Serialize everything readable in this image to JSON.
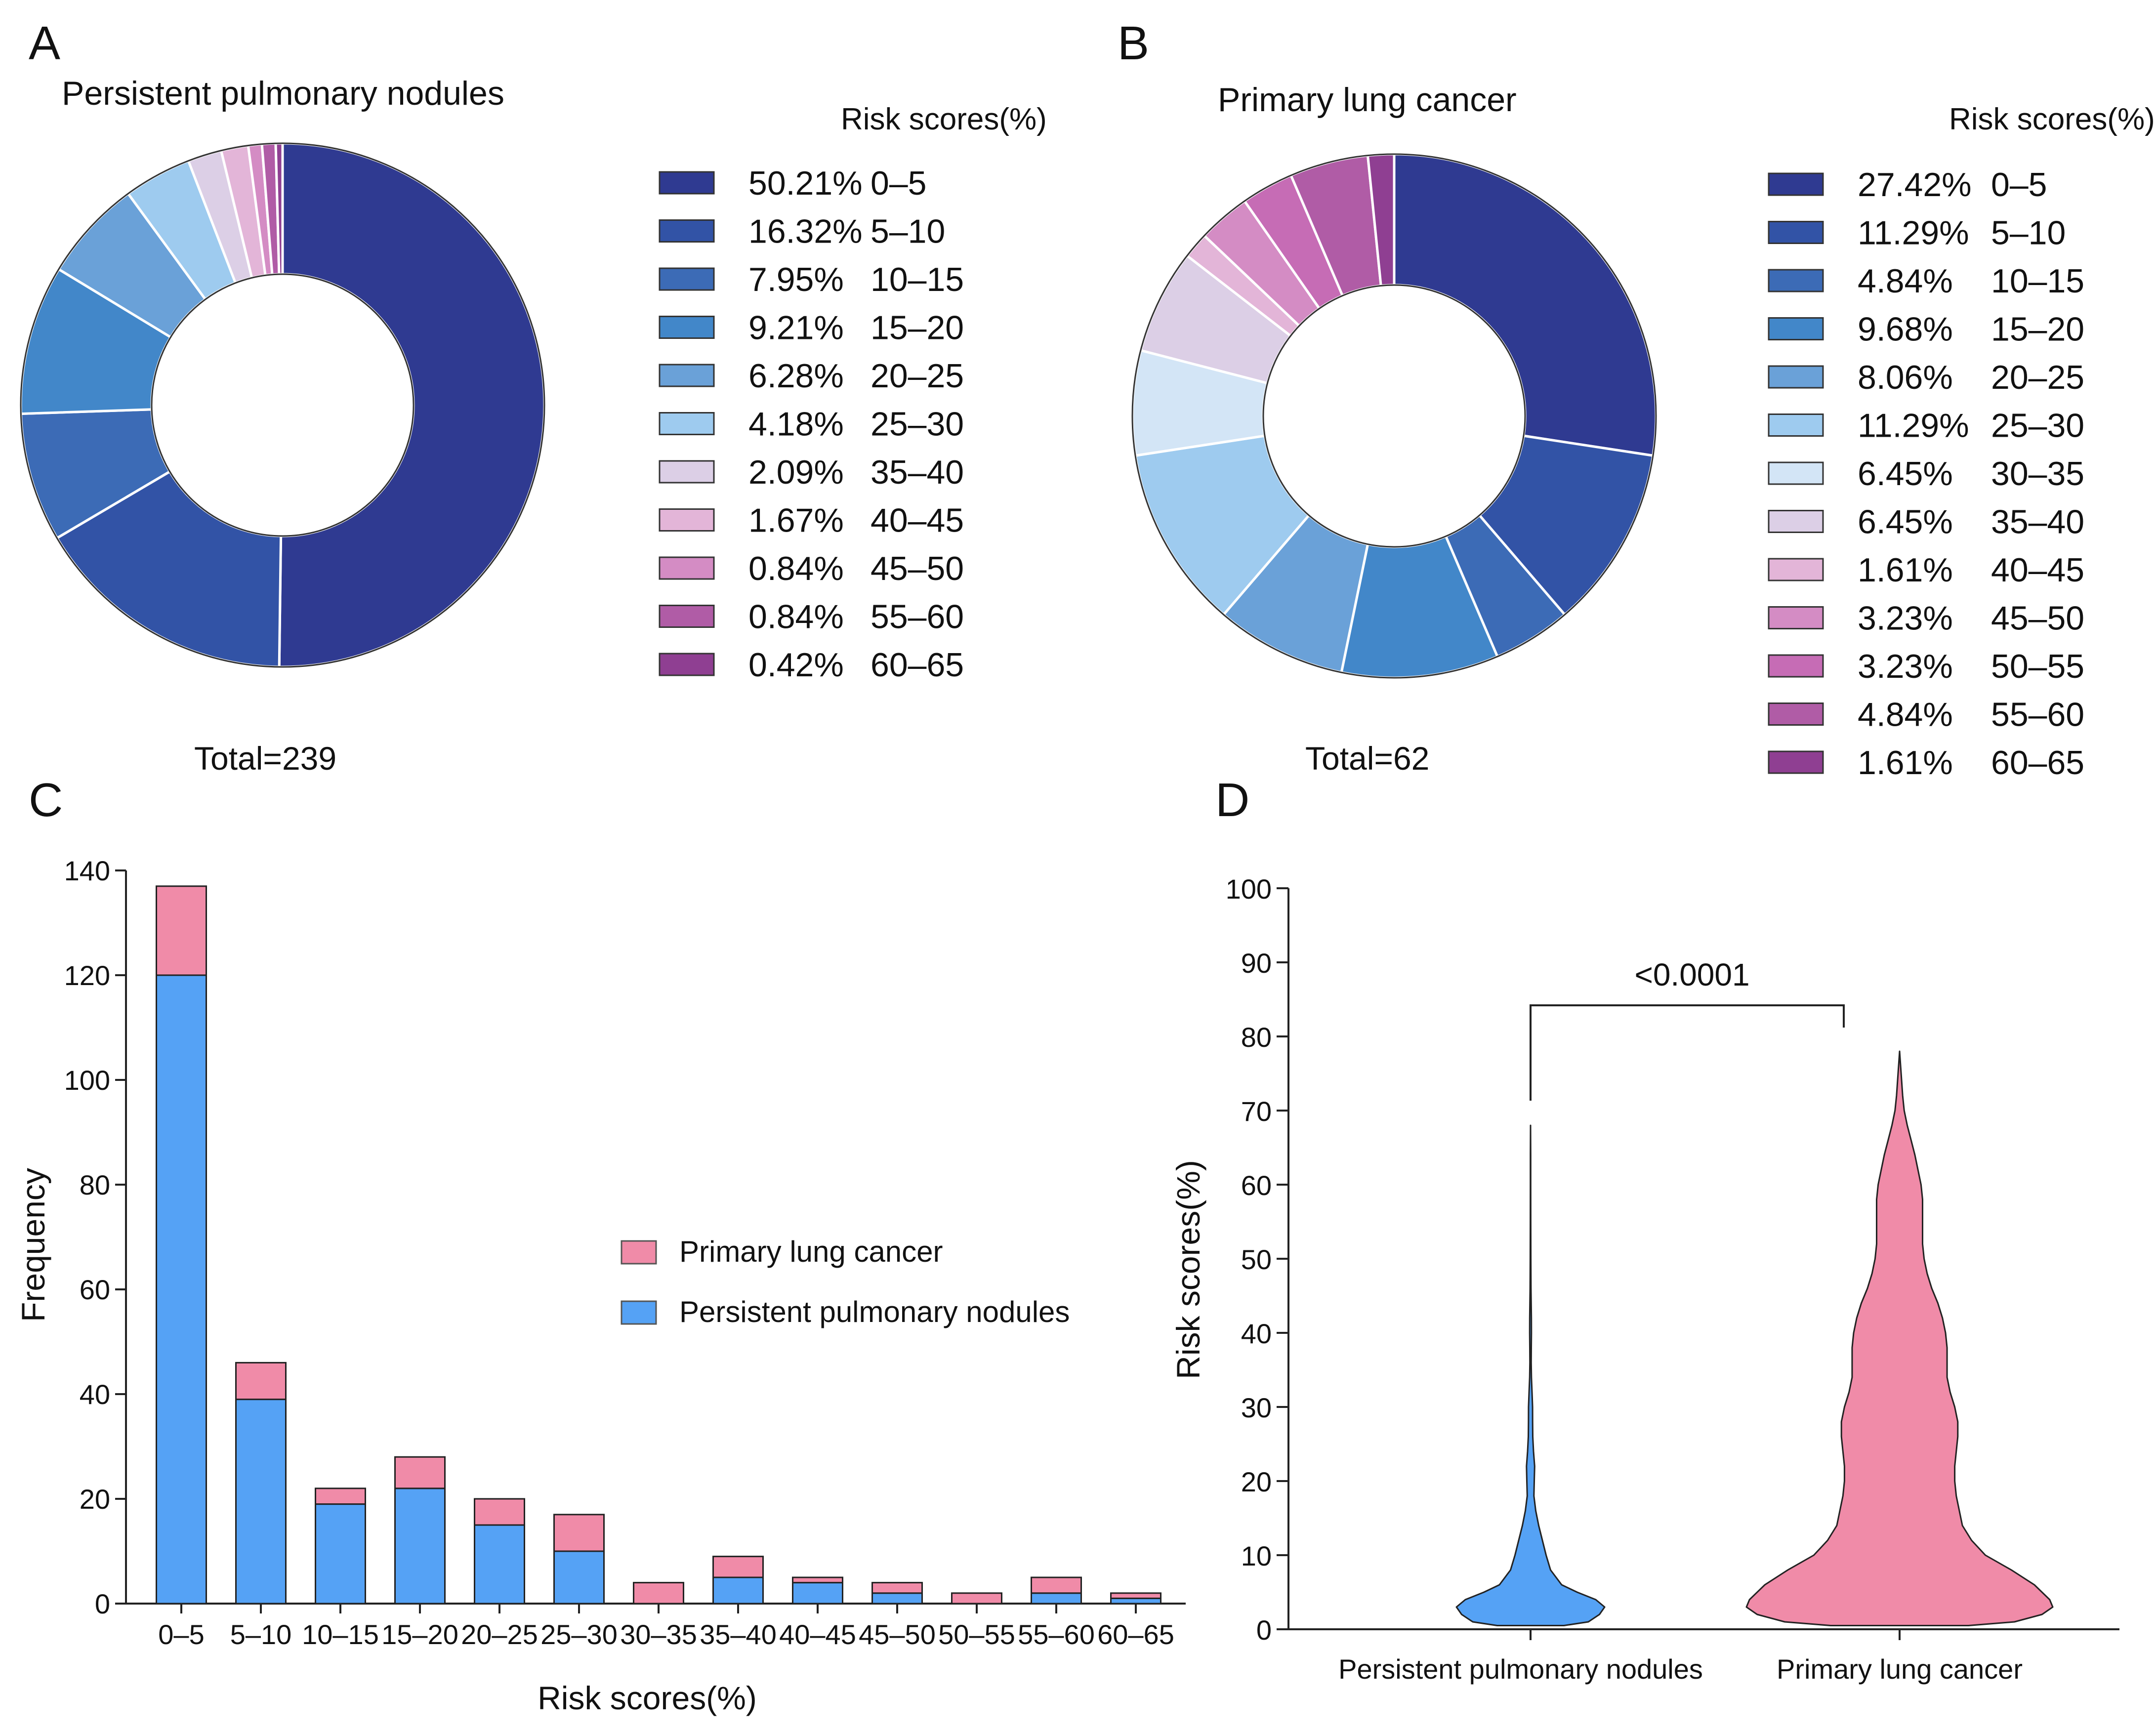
{
  "panels": {
    "a": "A",
    "b": "B",
    "c": "C",
    "d": "D"
  },
  "colors": {
    "blue": "#55a2f5",
    "pink": "#f08ba8",
    "pink_stroke": "#c8506f",
    "axis": "#222222"
  },
  "chart_data": [
    {
      "type": "pie",
      "panel": "A",
      "title": "Persistent pulmonary nodules",
      "legend_title": "Risk scores(%)",
      "total_label": "Total=239",
      "slices": [
        {
          "pct_label": "50.21%",
          "range": "0–5",
          "value": 50.21,
          "color": "#2f3a91"
        },
        {
          "pct_label": "16.32%",
          "range": "5–10",
          "value": 16.32,
          "color": "#3253a6"
        },
        {
          "pct_label": "7.95%",
          "range": "10–15",
          "value": 7.95,
          "color": "#3c6bb6"
        },
        {
          "pct_label": "9.21%",
          "range": "15–20",
          "value": 9.21,
          "color": "#4287c9"
        },
        {
          "pct_label": "6.28%",
          "range": "20–25",
          "value": 6.28,
          "color": "#6aa1d8"
        },
        {
          "pct_label": "4.18%",
          "range": "25–30",
          "value": 4.18,
          "color": "#9ecbef"
        },
        {
          "pct_label": "2.09%",
          "range": "35–40",
          "value": 2.09,
          "color": "#dccfe6"
        },
        {
          "pct_label": "1.67%",
          "range": "40–45",
          "value": 1.67,
          "color": "#e3b5d8"
        },
        {
          "pct_label": "0.84%",
          "range": "45–50",
          "value": 0.84,
          "color": "#d48cc4"
        },
        {
          "pct_label": "0.84%",
          "range": "55–60",
          "value": 0.84,
          "color": "#b05ca6"
        },
        {
          "pct_label": "0.42%",
          "range": "60–65",
          "value": 0.42,
          "color": "#8f3f92"
        }
      ]
    },
    {
      "type": "pie",
      "panel": "B",
      "title": "Primary lung cancer",
      "legend_title": "Risk scores(%)",
      "total_label": "Total=62",
      "slices": [
        {
          "pct_label": "27.42%",
          "range": "0–5",
          "value": 27.42,
          "color": "#2f3a91"
        },
        {
          "pct_label": "11.29%",
          "range": "5–10",
          "value": 11.29,
          "color": "#3253a6"
        },
        {
          "pct_label": "4.84%",
          "range": "10–15",
          "value": 4.84,
          "color": "#3c6bb6"
        },
        {
          "pct_label": "9.68%",
          "range": "15–20",
          "value": 9.68,
          "color": "#4287c9"
        },
        {
          "pct_label": "8.06%",
          "range": "20–25",
          "value": 8.06,
          "color": "#6aa1d8"
        },
        {
          "pct_label": "11.29%",
          "range": "25–30",
          "value": 11.29,
          "color": "#9ecbef"
        },
        {
          "pct_label": "6.45%",
          "range": "30–35",
          "value": 6.45,
          "color": "#d3e5f6"
        },
        {
          "pct_label": "6.45%",
          "range": "35–40",
          "value": 6.45,
          "color": "#dccfe6"
        },
        {
          "pct_label": "1.61%",
          "range": "40–45",
          "value": 1.61,
          "color": "#e3b5d8"
        },
        {
          "pct_label": "3.23%",
          "range": "45–50",
          "value": 3.23,
          "color": "#d48cc4"
        },
        {
          "pct_label": "3.23%",
          "range": "50–55",
          "value": 3.23,
          "color": "#c66cb5"
        },
        {
          "pct_label": "4.84%",
          "range": "55–60",
          "value": 4.84,
          "color": "#b05ca6"
        },
        {
          "pct_label": "1.61%",
          "range": "60–65",
          "value": 1.61,
          "color": "#8f3f92"
        }
      ]
    },
    {
      "type": "bar",
      "stacked": true,
      "panel": "C",
      "categories": [
        "0–5",
        "5–10",
        "10–15",
        "15–20",
        "20–25",
        "25–30",
        "30–35",
        "35–40",
        "40–45",
        "45–50",
        "50–55",
        "55–60",
        "60–65"
      ],
      "series": [
        {
          "name": "Persistent pulmonary nodules",
          "values": [
            120,
            39,
            19,
            22,
            15,
            10,
            0,
            5,
            4,
            2,
            0,
            2,
            1
          ]
        },
        {
          "name": "Primary lung cancer",
          "values": [
            17,
            7,
            3,
            6,
            5,
            7,
            4,
            4,
            1,
            2,
            2,
            3,
            1
          ]
        }
      ],
      "xlabel": "Risk scores(%)",
      "ylabel": "Frequency",
      "ylim": [
        0,
        140
      ],
      "yticks": [
        0,
        20,
        40,
        60,
        80,
        100,
        120,
        140
      ],
      "legend_position": "center-right"
    },
    {
      "type": "violin",
      "panel": "D",
      "categories": [
        "Persistent pulmonary nodules",
        "Primary lung cancer"
      ],
      "ylabel": "Risk scores(%)",
      "ylim": [
        0,
        100
      ],
      "yticks": [
        0,
        10,
        20,
        30,
        40,
        50,
        60,
        70,
        80,
        90,
        100
      ],
      "significance": "<0.0001",
      "violins": [
        {
          "name": "Persistent pulmonary nodules",
          "min": 0.5,
          "max": 68,
          "profile_y": [
            0.5,
            1,
            2,
            3,
            4,
            5,
            6,
            8,
            10,
            12,
            14,
            16,
            18,
            20,
            22,
            24,
            26,
            28,
            30,
            32,
            34,
            36,
            38,
            40,
            42,
            44,
            46,
            50,
            55,
            60,
            64,
            68
          ],
          "profile_w": [
            0.45,
            0.78,
            0.93,
            1.0,
            0.88,
            0.63,
            0.42,
            0.27,
            0.21,
            0.16,
            0.11,
            0.07,
            0.045,
            0.05,
            0.055,
            0.04,
            0.03,
            0.028,
            0.027,
            0.02,
            0.012,
            0.009,
            0.01,
            0.012,
            0.011,
            0.009,
            0.006,
            0.004,
            0.003,
            0.002,
            0.002,
            0.0
          ]
        },
        {
          "name": "Primary lung cancer",
          "min": 0.5,
          "max": 78,
          "profile_y": [
            0.5,
            1,
            2,
            3,
            4,
            6,
            8,
            10,
            12,
            14,
            16,
            18,
            20,
            22,
            24,
            26,
            28,
            30,
            32,
            34,
            36,
            38,
            40,
            42,
            44,
            46,
            48,
            50,
            52,
            54,
            56,
            58,
            60,
            62,
            64,
            66,
            68,
            70,
            72,
            75,
            78
          ],
          "profile_w": [
            0.45,
            0.75,
            0.93,
            1.0,
            0.98,
            0.88,
            0.73,
            0.56,
            0.47,
            0.41,
            0.39,
            0.37,
            0.36,
            0.36,
            0.37,
            0.38,
            0.38,
            0.36,
            0.33,
            0.31,
            0.31,
            0.31,
            0.3,
            0.28,
            0.25,
            0.21,
            0.18,
            0.16,
            0.15,
            0.15,
            0.15,
            0.15,
            0.14,
            0.12,
            0.1,
            0.075,
            0.05,
            0.03,
            0.02,
            0.01,
            0.0
          ]
        }
      ]
    }
  ]
}
